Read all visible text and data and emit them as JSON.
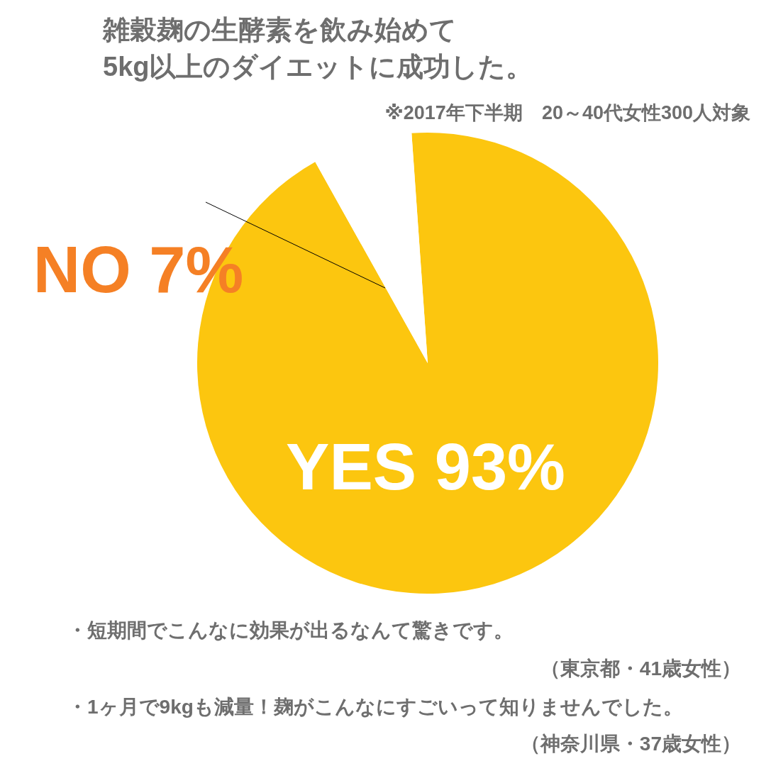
{
  "chart_data": {
    "type": "pie",
    "title": "雑穀麹の生酵素を飲み始めて\n5kg以上のダイエットに成功した。",
    "subtitle": "※2017年下半期　20～40代女性300人対象",
    "categories": [
      "YES",
      "NO"
    ],
    "values": [
      93,
      7
    ],
    "colors": [
      "#fcc60f",
      "#ffffff"
    ],
    "value_labels": [
      "93%",
      "7%"
    ],
    "annotations": [
      "・短期間でこんなに効果が出るなんて驚きです。",
      "（東京都・41歳女性）",
      "・1ヶ月で9kgも減量！麹がこんなにすごいって知りませんでした。",
      "（神奈川県・37歳女性）"
    ]
  }
}
